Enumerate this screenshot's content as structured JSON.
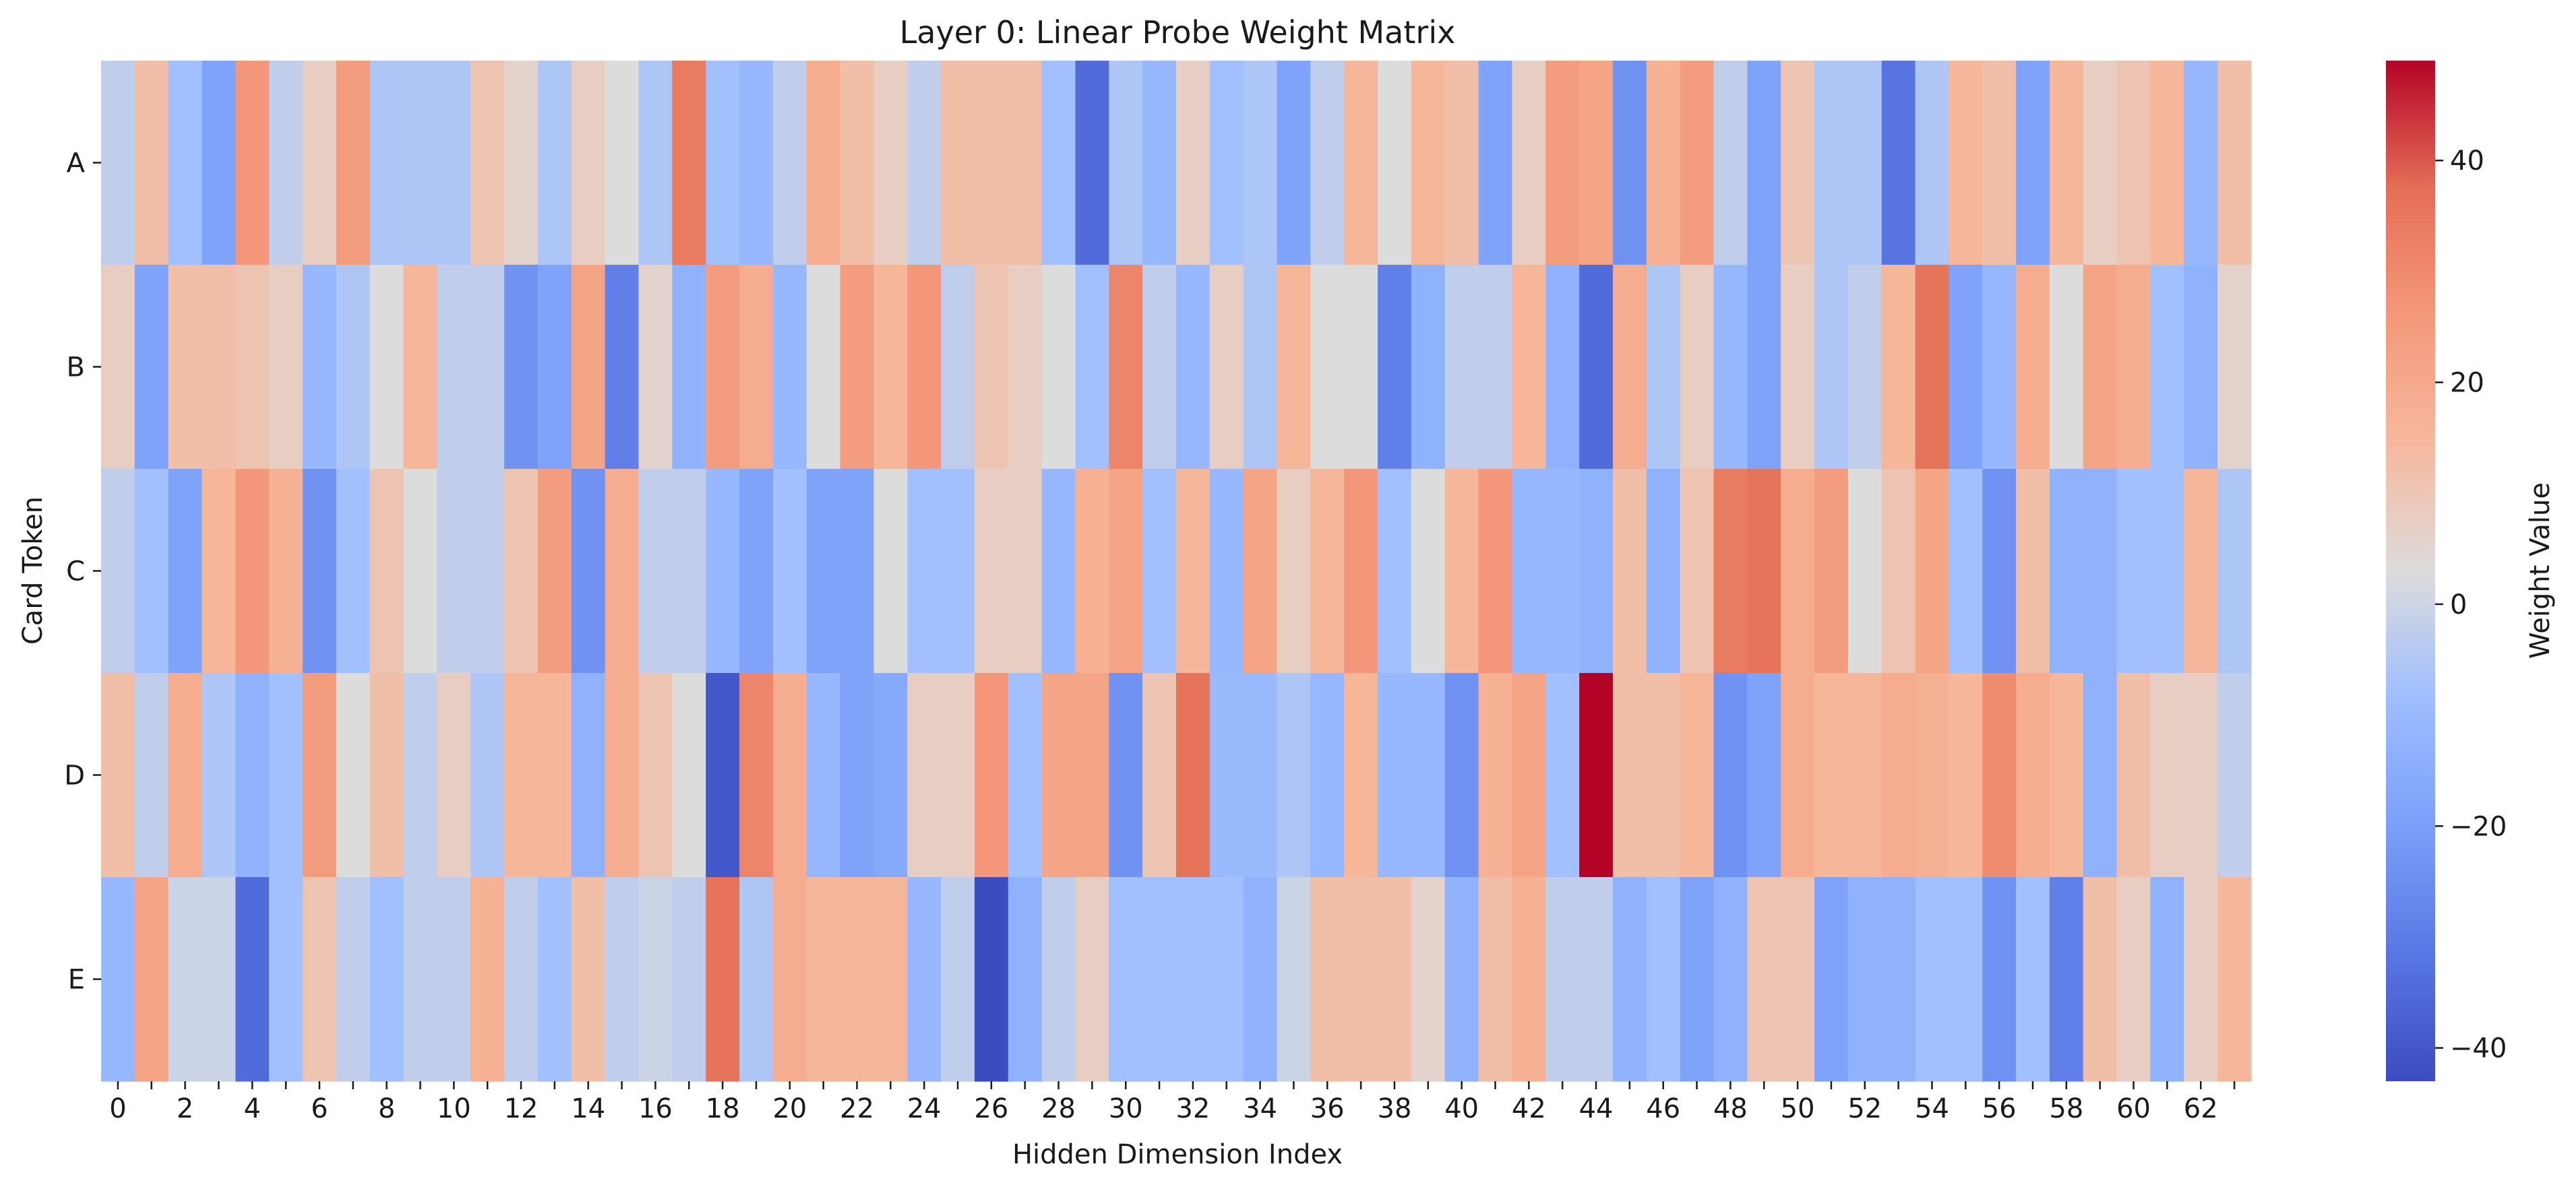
{
  "chart_data": {
    "type": "heatmap",
    "title": "Layer 0: Linear Probe Weight Matrix",
    "xlabel": "Hidden Dimension Index",
    "ylabel": "Card Token",
    "colorbar_label": "Weight Value",
    "rows": [
      "A",
      "B",
      "C",
      "D",
      "E"
    ],
    "x_tick_labels": [
      "0",
      "2",
      "4",
      "6",
      "8",
      "10",
      "12",
      "14",
      "16",
      "18",
      "20",
      "22",
      "24",
      "26",
      "28",
      "30",
      "32",
      "34",
      "36",
      "38",
      "40",
      "42",
      "44",
      "46",
      "48",
      "50",
      "52",
      "54",
      "56",
      "58",
      "60",
      "62"
    ],
    "columns": 64,
    "colorbar_ticks": [
      40,
      20,
      0,
      -20,
      -40
    ],
    "vmin": -43,
    "vmax": 49,
    "colormap": "coolwarm",
    "values": [
      [
        -5,
        10,
        -10,
        -20,
        25,
        -5,
        5,
        23,
        -8,
        -8,
        -8,
        8,
        3,
        -8,
        5,
        0,
        -8,
        33,
        -10,
        -13,
        -5,
        17,
        10,
        5,
        -5,
        10,
        10,
        10,
        -10,
        -35,
        -8,
        -13,
        5,
        -10,
        -8,
        -20,
        -5,
        13,
        0,
        13,
        10,
        -20,
        5,
        23,
        20,
        -25,
        15,
        23,
        -5,
        -20,
        8,
        -8,
        -8,
        -33,
        -8,
        13,
        10,
        -20,
        13,
        5,
        8,
        13,
        -13,
        10
      ],
      [
        5,
        -20,
        10,
        10,
        8,
        5,
        -13,
        -8,
        0,
        13,
        -5,
        -5,
        -25,
        -20,
        20,
        -30,
        3,
        -15,
        23,
        17,
        -13,
        0,
        23,
        13,
        25,
        -5,
        8,
        5,
        0,
        -10,
        30,
        -5,
        -13,
        5,
        -8,
        13,
        0,
        0,
        -30,
        -15,
        -5,
        -5,
        13,
        -15,
        -35,
        17,
        -8,
        5,
        -13,
        -20,
        5,
        -8,
        -5,
        13,
        35,
        -20,
        -13,
        17,
        0,
        20,
        17,
        -10,
        -15,
        3
      ],
      [
        -5,
        -10,
        -20,
        13,
        25,
        15,
        -25,
        -10,
        8,
        0,
        -5,
        -5,
        8,
        23,
        -25,
        17,
        -5,
        -5,
        -13,
        -20,
        -10,
        -20,
        -20,
        0,
        -10,
        -10,
        5,
        5,
        -13,
        15,
        20,
        -10,
        13,
        -13,
        20,
        5,
        13,
        25,
        -10,
        0,
        13,
        25,
        -13,
        -13,
        -15,
        10,
        -15,
        8,
        33,
        35,
        17,
        23,
        0,
        8,
        20,
        -10,
        -25,
        10,
        -15,
        -15,
        -10,
        -10,
        13,
        -8
      ],
      [
        10,
        -5,
        17,
        -8,
        -15,
        -10,
        23,
        0,
        10,
        -5,
        5,
        -8,
        13,
        13,
        -15,
        17,
        8,
        0,
        -40,
        30,
        17,
        -13,
        -20,
        -18,
        5,
        5,
        25,
        -10,
        20,
        20,
        -25,
        8,
        35,
        -12,
        -12,
        -8,
        -13,
        13,
        -13,
        -13,
        -25,
        15,
        20,
        -10,
        49,
        10,
        10,
        13,
        -25,
        -20,
        17,
        13,
        13,
        17,
        15,
        13,
        28,
        17,
        13,
        -15,
        10,
        5,
        5,
        -5
      ],
      [
        -13,
        20,
        -3,
        -3,
        -35,
        -10,
        8,
        -5,
        -10,
        -5,
        -5,
        15,
        -5,
        -10,
        10,
        -5,
        -3,
        -5,
        35,
        -8,
        17,
        13,
        13,
        13,
        -13,
        -5,
        -43,
        -15,
        -5,
        5,
        -10,
        -10,
        -10,
        -10,
        -15,
        -3,
        10,
        10,
        10,
        3,
        -15,
        10,
        15,
        -5,
        -5,
        -15,
        -10,
        -20,
        -15,
        8,
        8,
        -20,
        -15,
        -15,
        -10,
        -10,
        -25,
        -10,
        -30,
        10,
        5,
        -15,
        5,
        13
      ]
    ]
  }
}
